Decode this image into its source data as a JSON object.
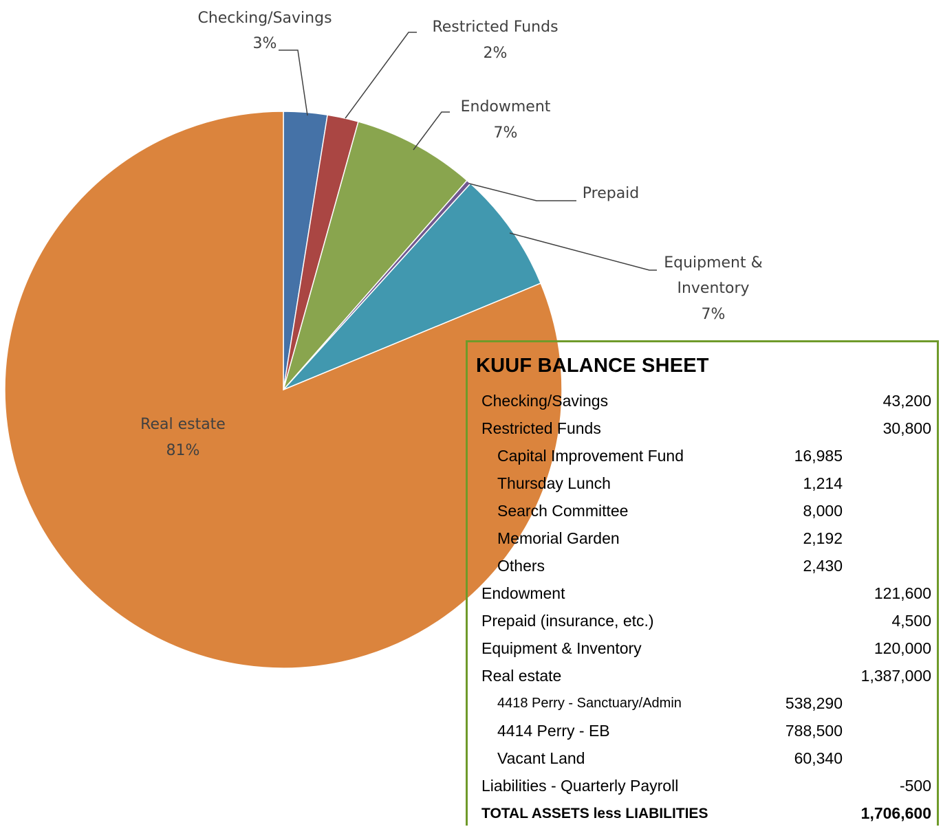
{
  "chart_data": {
    "type": "pie",
    "slices": [
      {
        "label": "Checking/Savings",
        "pct_label": "3%",
        "value": 43200,
        "color": "#4572a7"
      },
      {
        "label": "Restricted Funds",
        "pct_label": "2%",
        "value": 30800,
        "color": "#aa4643"
      },
      {
        "label": "Endowment",
        "pct_label": "7%",
        "value": 121600,
        "color": "#89a54e"
      },
      {
        "label": "Prepaid",
        "pct_label": "",
        "value": 4500,
        "color": "#71588f"
      },
      {
        "label": "Equipment & Inventory",
        "label_lines": [
          "Equipment &",
          "Inventory"
        ],
        "pct_label": "7%",
        "value": 120000,
        "color": "#4198af"
      },
      {
        "label": "Real estate",
        "pct_label": "81%",
        "value": 1387000,
        "color": "#db843d"
      }
    ]
  },
  "balance_sheet": {
    "title": "KUUF BALANCE SHEET",
    "rows": [
      {
        "name": "Checking/Savings",
        "sub": "",
        "main": "43,200",
        "level": 0
      },
      {
        "name": "Restricted Funds",
        "sub": "",
        "main": "30,800",
        "level": 0
      },
      {
        "name": "Capital Improvement Fund",
        "sub": "16,985",
        "main": "",
        "level": 1
      },
      {
        "name": "Thursday Lunch",
        "sub": "1,214",
        "main": "",
        "level": 1
      },
      {
        "name": "Search Committee",
        "sub": "8,000",
        "main": "",
        "level": 1
      },
      {
        "name": "Memorial Garden",
        "sub": "2,192",
        "main": "",
        "level": 1
      },
      {
        "name": "Others",
        "sub": "2,430",
        "main": "",
        "level": 1
      },
      {
        "name": "Endowment",
        "sub": "",
        "main": "121,600",
        "level": 0
      },
      {
        "name": "Prepaid (insurance, etc.)",
        "sub": "",
        "main": "4,500",
        "level": 0
      },
      {
        "name": "Equipment & Inventory",
        "sub": "",
        "main": "120,000",
        "level": 0
      },
      {
        "name": "Real estate",
        "sub": "",
        "main": "1,387,000",
        "level": 0
      },
      {
        "name": "4418 Perry - Sanctuary/Admin",
        "sub": "538,290",
        "main": "",
        "level": 1,
        "small": true
      },
      {
        "name": "4414 Perry - EB",
        "sub": "788,500",
        "main": "",
        "level": 1
      },
      {
        "name": "Vacant Land",
        "sub": "60,340",
        "main": "",
        "level": 1
      },
      {
        "name": "Liabilities - Quarterly Payroll",
        "sub": "",
        "main": "-500",
        "level": 0
      },
      {
        "name": "TOTAL ASSETS less LIABILITIES",
        "sub": "",
        "main": "1,706,600",
        "level": 0,
        "bold": true
      }
    ]
  }
}
